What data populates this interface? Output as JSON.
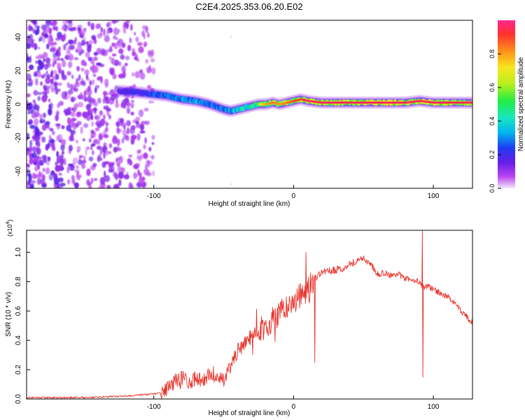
{
  "figure_title": "C2E4.2025.353.06.20.E02",
  "chart_data": [
    {
      "type": "heatmap",
      "title": "C2E4.2025.353.06.20.E02",
      "xlabel": "Height of straight line (km)",
      "ylabel": "Frequency (Hz)",
      "xlim": [
        -191,
        128
      ],
      "ylim": [
        -50,
        50
      ],
      "x_ticks": [
        -100,
        0,
        100
      ],
      "y_ticks": [
        -40,
        -20,
        0,
        20,
        40
      ],
      "colorbar": {
        "label": "Normalized spectral amplitude",
        "range": [
          0,
          1
        ],
        "ticks": [
          "0.0",
          "0.2",
          "0.4",
          "0.6",
          "0.8"
        ]
      },
      "ridge_track": {
        "x": [
          -125,
          -110,
          -100,
          -90,
          -80,
          -70,
          -60,
          -50,
          -45,
          -40,
          -35,
          -30,
          -25,
          -20,
          -15,
          -10,
          -5,
          0,
          5,
          10,
          20,
          40,
          60,
          80,
          90,
          100,
          128
        ],
        "freq": [
          8,
          7,
          6,
          5,
          3,
          2,
          0,
          -3,
          -4,
          -3,
          -2,
          -1,
          0,
          0,
          1,
          0,
          1,
          2,
          3,
          2,
          1,
          1,
          1,
          1,
          2,
          1,
          1
        ],
        "amplitude": [
          0.25,
          0.3,
          0.35,
          0.4,
          0.45,
          0.45,
          0.4,
          0.45,
          0.5,
          0.55,
          0.6,
          0.65,
          0.7,
          0.8,
          0.85,
          0.8,
          0.85,
          0.9,
          0.9,
          0.95,
          0.95,
          0.95,
          0.95,
          0.95,
          0.95,
          0.95,
          0.95
        ]
      },
      "noise_region_x": [
        -191,
        -100
      ]
    },
    {
      "type": "line",
      "xlabel": "Height of straight line (km)",
      "ylabel": "SNR (10 * v/v)",
      "y_scale_label": "(x10",
      "y_scale_exponent": "4",
      "xlim": [
        -191,
        128
      ],
      "ylim": [
        0,
        1.15
      ],
      "x_ticks": [
        -100,
        0,
        100
      ],
      "y_ticks": [
        "0.0",
        "0.2",
        "0.4",
        "0.6",
        "0.8",
        "1.0"
      ],
      "series": [
        {
          "name": "SNR",
          "color": "#e8322a",
          "x": [
            -191,
            -150,
            -120,
            -105,
            -95,
            -90,
            -85,
            -80,
            -75,
            -70,
            -65,
            -60,
            -55,
            -50,
            -45,
            -40,
            -35,
            -30,
            -25,
            -20,
            -15,
            -10,
            -5,
            0,
            5,
            10,
            15,
            20,
            25,
            30,
            35,
            40,
            45,
            50,
            55,
            60,
            65,
            70,
            75,
            80,
            85,
            90,
            92,
            95,
            100,
            105,
            110,
            115,
            120,
            125,
            128
          ],
          "y": [
            0.01,
            0.01,
            0.02,
            0.03,
            0.04,
            0.07,
            0.12,
            0.15,
            0.11,
            0.14,
            0.12,
            0.17,
            0.15,
            0.12,
            0.22,
            0.33,
            0.38,
            0.43,
            0.47,
            0.5,
            0.54,
            0.58,
            0.62,
            0.67,
            0.7,
            0.75,
            0.82,
            0.86,
            0.87,
            0.88,
            0.89,
            0.92,
            0.94,
            0.96,
            0.92,
            0.85,
            0.86,
            0.84,
            0.85,
            0.82,
            0.81,
            0.8,
            0.76,
            0.77,
            0.75,
            0.72,
            0.7,
            0.65,
            0.6,
            0.55,
            0.52
          ],
          "annotated_spikes": [
            {
              "x": 92,
              "y": 1.15
            },
            {
              "x": 92.5,
              "y": 0.15
            },
            {
              "x": 9,
              "y": 1.0
            },
            {
              "x": 15,
              "y": 0.25
            }
          ]
        }
      ]
    }
  ]
}
